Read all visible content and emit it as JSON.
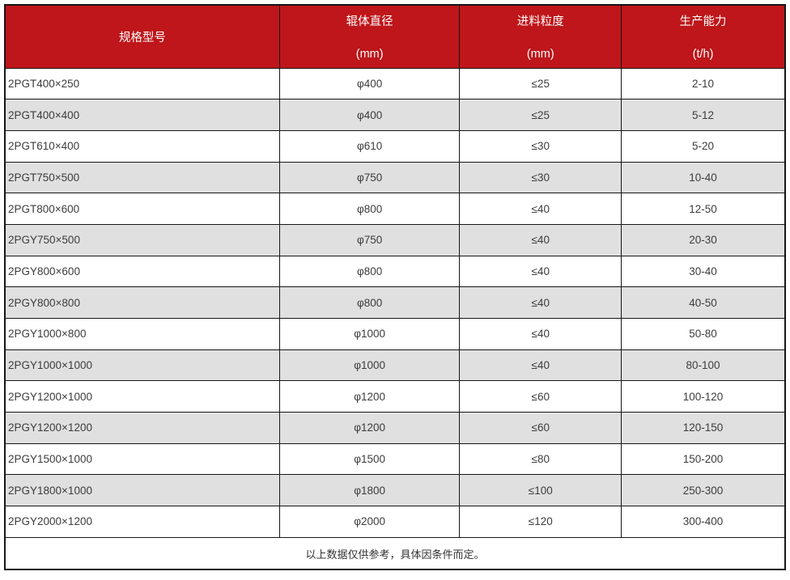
{
  "colors": {
    "header_bg": "#be161a",
    "header_text": "#ffffff",
    "row_alt_bg": "#e0e0e0",
    "border": "#161616",
    "body_text": "#3c3c3c"
  },
  "table": {
    "columns": [
      {
        "title": "规格型号",
        "unit": ""
      },
      {
        "title": "辊体直径",
        "unit": "(mm)"
      },
      {
        "title": "进料粒度",
        "unit": "(mm)"
      },
      {
        "title": "生产能力",
        "unit": "(t/h)"
      }
    ],
    "rows": [
      [
        "2PGT400×250",
        "φ400",
        "≤25",
        "2-10"
      ],
      [
        "2PGT400×400",
        "φ400",
        "≤25",
        "5-12"
      ],
      [
        "2PGT610×400",
        "φ610",
        "≤30",
        "5-20"
      ],
      [
        "2PGT750×500",
        "φ750",
        "≤30",
        "10-40"
      ],
      [
        "2PGT800×600",
        "φ800",
        "≤40",
        "12-50"
      ],
      [
        "2PGY750×500",
        "φ750",
        "≤40",
        "20-30"
      ],
      [
        "2PGY800×600",
        "φ800",
        "≤40",
        "30-40"
      ],
      [
        "2PGY800×800",
        "φ800",
        "≤40",
        "40-50"
      ],
      [
        "2PGY1000×800",
        "φ1000",
        "≤40",
        "50-80"
      ],
      [
        "2PGY1000×1000",
        "φ1000",
        "≤40",
        "80-100"
      ],
      [
        "2PGY1200×1000",
        "φ1200",
        "≤60",
        "100-120"
      ],
      [
        "2PGY1200×1200",
        "φ1200",
        "≤60",
        "120-150"
      ],
      [
        "2PGY1500×1000",
        "φ1500",
        "≤80",
        "150-200"
      ],
      [
        "2PGY1800×1000",
        "φ1800",
        "≤100",
        "250-300"
      ],
      [
        "2PGY2000×1200",
        "φ2000",
        "≤120",
        "300-400"
      ]
    ],
    "footnote": "以上数据仅供参考，具体因条件而定。"
  }
}
